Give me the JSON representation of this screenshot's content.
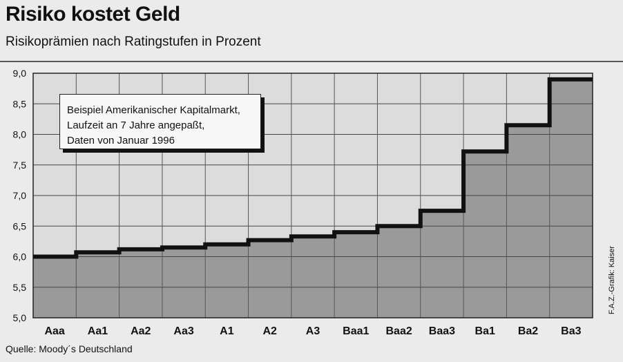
{
  "header": {
    "title": "Risiko kostet Geld",
    "subtitle": "Risikoprämien nach Ratingstufen in Prozent"
  },
  "note": {
    "line1": "Beispiel Amerikanischer Kapitalmarkt,",
    "line2": "Laufzeit an 7 Jahre angepaßt,",
    "line3": "Daten von Januar 1996"
  },
  "footer": {
    "source": "Quelle: Moody´s Deutschland",
    "credit": "F.A.Z.-Grafik: Kaiser"
  },
  "chart_data": {
    "type": "area",
    "categories": [
      "Aaa",
      "Aa1",
      "Aa2",
      "Aa3",
      "A1",
      "A2",
      "A3",
      "Baa1",
      "Baa2",
      "Baa3",
      "Ba1",
      "Ba2",
      "Ba3"
    ],
    "values": [
      6.0,
      6.07,
      6.12,
      6.15,
      6.2,
      6.27,
      6.33,
      6.4,
      6.5,
      6.75,
      7.72,
      8.15,
      8.9
    ],
    "ylim": [
      5.0,
      9.0
    ],
    "yticks": [
      "5,0",
      "5,5",
      "6,0",
      "6,5",
      "7,0",
      "7,5",
      "8,0",
      "8,5",
      "9,0"
    ],
    "step": true,
    "grid": true,
    "colors": {
      "fill": "#9a9a9a",
      "line": "#111111",
      "plot_bg": "#dcdcdc"
    }
  }
}
